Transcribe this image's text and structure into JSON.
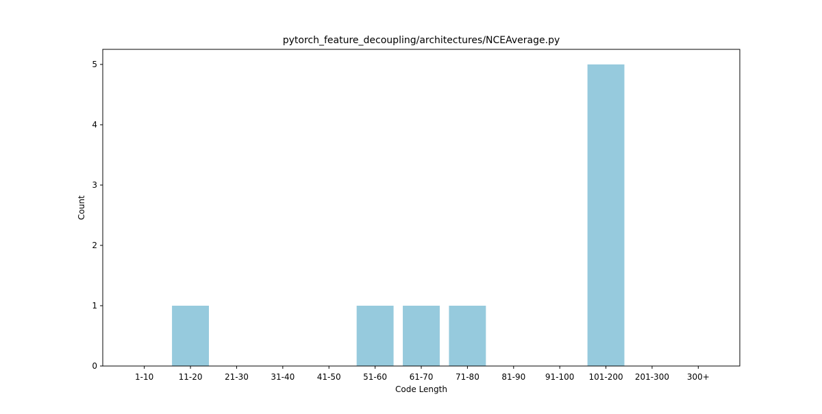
{
  "chart_data": {
    "type": "bar",
    "title": "pytorch_feature_decoupling/architectures/NCEAverage.py",
    "xlabel": "Code Length",
    "ylabel": "Count",
    "categories": [
      "1-10",
      "11-20",
      "21-30",
      "31-40",
      "41-50",
      "51-60",
      "61-70",
      "71-80",
      "81-90",
      "91-100",
      "101-200",
      "201-300",
      "300+"
    ],
    "values": [
      0,
      1,
      0,
      0,
      0,
      1,
      1,
      1,
      0,
      0,
      5,
      0,
      0
    ],
    "yticks": [
      0,
      1,
      2,
      3,
      4,
      5
    ],
    "ylim": [
      0,
      5.25
    ],
    "grid": false,
    "bar_color": "#96cadd"
  }
}
